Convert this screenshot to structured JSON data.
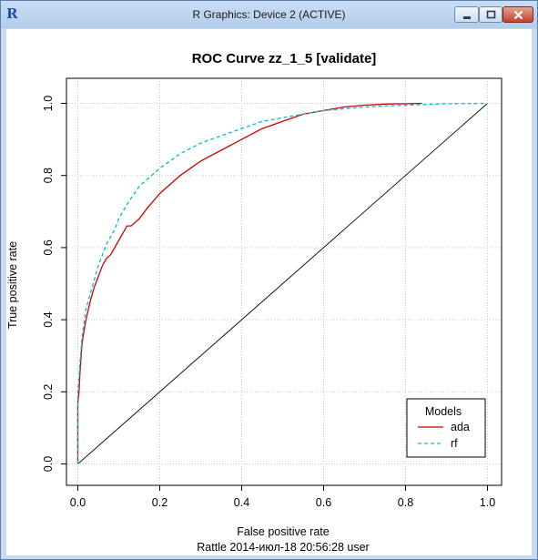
{
  "window": {
    "title": "R Graphics: Device 2 (ACTIVE)",
    "icon": "r-logo-icon"
  },
  "chart_data": {
    "type": "line",
    "title": "ROC Curve  zz_1_5 [validate]",
    "xlabel": "False positive rate",
    "ylabel": "True positive rate",
    "footer": "Rattle 2014-июл-18 20:56:28 user",
    "xlim": [
      0,
      1
    ],
    "ylim": [
      0,
      1
    ],
    "xticks": [
      "0.0",
      "0.2",
      "0.4",
      "0.6",
      "0.8",
      "1.0"
    ],
    "yticks": [
      "0.0",
      "0.2",
      "0.4",
      "0.6",
      "0.8",
      "1.0"
    ],
    "grid": true,
    "legend": {
      "title": "Models",
      "position": "bottom-right"
    },
    "series": [
      {
        "name": "ada",
        "color": "#cc0000",
        "style": "solid",
        "x": [
          0,
          0,
          0.003,
          0.005,
          0.008,
          0.01,
          0.015,
          0.02,
          0.03,
          0.04,
          0.05,
          0.06,
          0.07,
          0.08,
          0.09,
          0.1,
          0.11,
          0.12,
          0.13,
          0.15,
          0.17,
          0.2,
          0.25,
          0.3,
          0.35,
          0.4,
          0.45,
          0.5,
          0.55,
          0.6,
          0.65,
          0.7,
          0.75,
          0.8,
          0.84
        ],
        "y": [
          0,
          0.17,
          0.2,
          0.25,
          0.3,
          0.33,
          0.37,
          0.4,
          0.45,
          0.49,
          0.52,
          0.55,
          0.57,
          0.58,
          0.6,
          0.62,
          0.64,
          0.66,
          0.66,
          0.68,
          0.71,
          0.75,
          0.8,
          0.84,
          0.87,
          0.9,
          0.93,
          0.95,
          0.97,
          0.98,
          0.99,
          0.995,
          0.998,
          0.999,
          1.0
        ]
      },
      {
        "name": "rf",
        "color": "#00bfc4",
        "style": "dashed",
        "x": [
          0,
          0,
          0.003,
          0.005,
          0.008,
          0.01,
          0.015,
          0.02,
          0.03,
          0.04,
          0.05,
          0.06,
          0.07,
          0.08,
          0.09,
          0.1,
          0.12,
          0.15,
          0.2,
          0.25,
          0.3,
          0.35,
          0.4,
          0.45,
          0.5,
          0.55,
          0.6,
          0.7,
          0.8,
          0.9,
          1.0
        ],
        "y": [
          0,
          0.2,
          0.24,
          0.28,
          0.32,
          0.35,
          0.39,
          0.43,
          0.47,
          0.51,
          0.55,
          0.58,
          0.61,
          0.63,
          0.65,
          0.68,
          0.72,
          0.77,
          0.82,
          0.86,
          0.89,
          0.91,
          0.93,
          0.95,
          0.96,
          0.97,
          0.98,
          0.99,
          0.995,
          0.999,
          1.0
        ]
      },
      {
        "name": "",
        "color": "#000000",
        "style": "solid",
        "x": [
          0,
          1
        ],
        "y": [
          0,
          1
        ]
      }
    ]
  }
}
